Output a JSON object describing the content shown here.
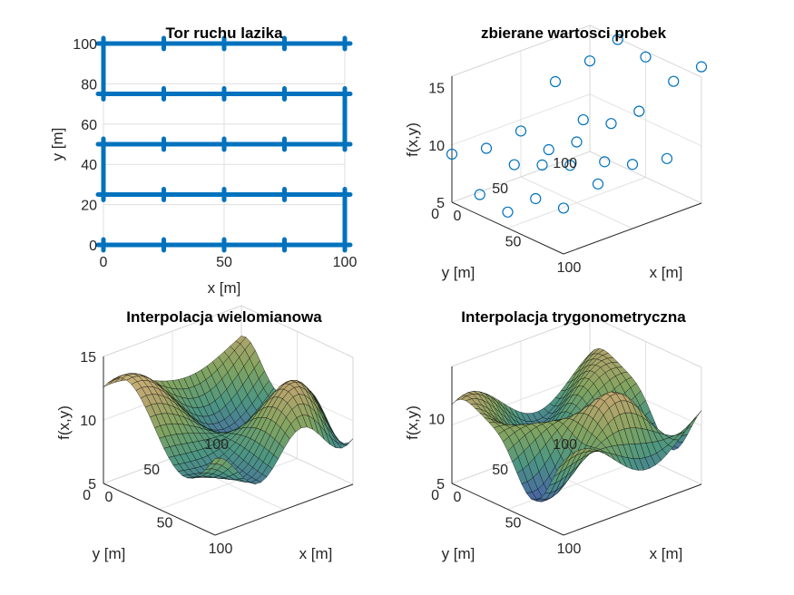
{
  "chart_data": [
    {
      "type": "line",
      "title": "Tor ruchu lazika",
      "xlabel": "x [m]",
      "ylabel": "y [m]",
      "xlim": [
        0,
        100
      ],
      "ylim": [
        0,
        100
      ],
      "xticks": [
        "0",
        "50",
        "100"
      ],
      "yticks": [
        "0",
        "20",
        "40",
        "60",
        "80",
        "100"
      ],
      "grid": true,
      "color": "#0072BD",
      "path_x": [
        0,
        100,
        100,
        0,
        0,
        100,
        100,
        0,
        0,
        100
      ],
      "path_y": [
        0,
        0,
        25,
        25,
        50,
        50,
        75,
        75,
        100,
        100
      ],
      "sample_x": [
        0,
        25,
        50,
        75,
        100
      ],
      "sample_y": [
        0,
        25,
        50,
        75,
        100
      ]
    },
    {
      "type": "scatter",
      "title": "zbierane wartosci probek",
      "xlabel": "x [m]",
      "ylabel": "y [m]",
      "zlabel": "f(x,y)",
      "xticks": [
        "0",
        "50",
        "100"
      ],
      "yticks": [
        "0",
        "50",
        "100"
      ],
      "zticks": [
        "5",
        "10",
        "15"
      ],
      "xlim": [
        0,
        100
      ],
      "ylim": [
        0,
        100
      ],
      "zlim": [
        5,
        15
      ],
      "marker": "open-circle",
      "color": "#0072BD",
      "points": [
        {
          "x": 0,
          "y": 100,
          "z": 12.9
        },
        {
          "x": 0,
          "y": 75,
          "z": 12.2
        },
        {
          "x": 25,
          "y": 100,
          "z": 15.9
        },
        {
          "x": 50,
          "y": 100,
          "z": 15.5
        },
        {
          "x": 75,
          "y": 100,
          "z": 14.5
        },
        {
          "x": 100,
          "y": 100,
          "z": 16.9
        },
        {
          "x": 0,
          "y": 50,
          "z": 9.0
        },
        {
          "x": 25,
          "y": 75,
          "z": 10.0
        },
        {
          "x": 50,
          "y": 75,
          "z": 10.8
        },
        {
          "x": 75,
          "y": 75,
          "z": 13.0
        },
        {
          "x": 100,
          "y": 75,
          "z": 10.0
        },
        {
          "x": 0,
          "y": 25,
          "z": 8.6
        },
        {
          "x": 25,
          "y": 50,
          "z": 8.5
        },
        {
          "x": 50,
          "y": 50,
          "z": 10.3
        },
        {
          "x": 75,
          "y": 50,
          "z": 9.7
        },
        {
          "x": 100,
          "y": 50,
          "z": 10.6
        },
        {
          "x": 0,
          "y": 0,
          "z": 9.2
        },
        {
          "x": 25,
          "y": 25,
          "z": 8.3
        },
        {
          "x": 50,
          "y": 25,
          "z": 9.4
        },
        {
          "x": 75,
          "y": 25,
          "z": 10.5
        },
        {
          "x": 100,
          "y": 25,
          "z": 10.0
        },
        {
          "x": 25,
          "y": 0,
          "z": 6.8
        },
        {
          "x": 50,
          "y": 0,
          "z": 6.4
        },
        {
          "x": 75,
          "y": 0,
          "z": 8.7
        },
        {
          "x": 100,
          "y": 0,
          "z": 9.0
        }
      ]
    },
    {
      "type": "surface",
      "title": "Interpolacja wielomianowa",
      "xlabel": "x [m]",
      "ylabel": "y [m]",
      "zlabel": "f(x,y)",
      "xticks": [
        "0",
        "50",
        "100"
      ],
      "yticks": [
        "0",
        "50",
        "100"
      ],
      "zticks": [
        "5",
        "10",
        "15"
      ],
      "xlim": [
        0,
        100
      ],
      "ylim": [
        0,
        100
      ],
      "zlim": [
        5,
        15
      ],
      "colormap": "parula-like",
      "edgecolor": "#000000"
    },
    {
      "type": "surface",
      "title": "Interpolacja trygonometryczna",
      "xlabel": "x [m]",
      "ylabel": "y [m]",
      "zlabel": "f(x,y)",
      "xticks": [
        "0",
        "50",
        "100"
      ],
      "yticks": [
        "0",
        "50",
        "100"
      ],
      "zticks": [
        "5",
        "10"
      ],
      "xlim": [
        0,
        100
      ],
      "ylim": [
        0,
        100
      ],
      "zlim": [
        5,
        14
      ],
      "colormap": "parula-like",
      "edgecolor": "#000000"
    }
  ]
}
